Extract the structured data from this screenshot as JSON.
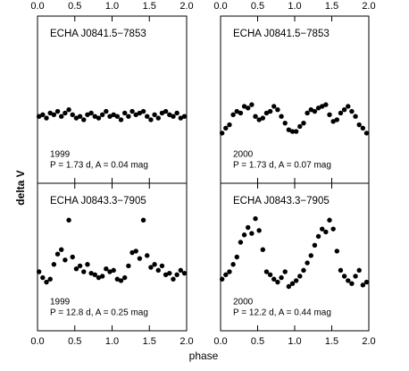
{
  "ylabel": "delta V",
  "xlabel": "phase",
  "chart_data": [
    {
      "type": "scatter",
      "name": "ECHA J0841.5−7853",
      "epoch": "1999",
      "params": "P = 1.73 d, A = 0.04 mag",
      "color": "#000000",
      "xlim": [
        0,
        2
      ],
      "ylim": [
        0,
        1
      ],
      "xticks": [
        {
          "value": 0,
          "label": "0.0"
        },
        0.5,
        {
          "value": 1,
          "label": "1.0"
        },
        1.5,
        {
          "value": 2,
          "label": "2.0"
        }
      ],
      "x": [
        0.02,
        0.07,
        0.12,
        0.17,
        0.22,
        0.27,
        0.32,
        0.37,
        0.42,
        0.47,
        0.52,
        0.57,
        0.62,
        0.67,
        0.72,
        0.77,
        0.82,
        0.87,
        0.92,
        0.97,
        1.02,
        1.07,
        1.12,
        1.17,
        1.22,
        1.27,
        1.32,
        1.37,
        1.42,
        1.47,
        1.52,
        1.57,
        1.62,
        1.67,
        1.72,
        1.77,
        1.82,
        1.87,
        1.92,
        1.97
      ],
      "values": [
        0.4,
        0.41,
        0.39,
        0.42,
        0.41,
        0.43,
        0.4,
        0.42,
        0.44,
        0.41,
        0.39,
        0.4,
        0.38,
        0.41,
        0.42,
        0.4,
        0.39,
        0.41,
        0.43,
        0.4,
        0.41,
        0.4,
        0.38,
        0.42,
        0.4,
        0.43,
        0.41,
        0.42,
        0.43,
        0.4,
        0.38,
        0.41,
        0.39,
        0.42,
        0.43,
        0.41,
        0.4,
        0.42,
        0.39,
        0.4
      ]
    },
    {
      "type": "scatter",
      "name": "ECHA J0841.5−7853",
      "epoch": "2000",
      "params": "P = 1.73 d, A = 0.07 mag",
      "color": "#000000",
      "xlim": [
        0,
        2
      ],
      "ylim": [
        0,
        1
      ],
      "xticks": [
        {
          "value": 0,
          "label": "0.0"
        },
        0.5,
        {
          "value": 1,
          "label": "1.0"
        },
        1.5,
        {
          "value": 2,
          "label": "2.0"
        }
      ],
      "x": [
        0.02,
        0.07,
        0.12,
        0.17,
        0.22,
        0.27,
        0.32,
        0.37,
        0.42,
        0.47,
        0.52,
        0.57,
        0.62,
        0.67,
        0.72,
        0.77,
        0.82,
        0.87,
        0.92,
        0.97,
        1.02,
        1.07,
        1.12,
        1.17,
        1.22,
        1.27,
        1.32,
        1.37,
        1.42,
        1.47,
        1.52,
        1.57,
        1.62,
        1.67,
        1.72,
        1.77,
        1.82,
        1.87,
        1.92,
        1.97
      ],
      "values": [
        0.3,
        0.33,
        0.35,
        0.41,
        0.43,
        0.42,
        0.46,
        0.45,
        0.47,
        0.4,
        0.38,
        0.39,
        0.42,
        0.43,
        0.46,
        0.44,
        0.4,
        0.36,
        0.32,
        0.31,
        0.31,
        0.34,
        0.36,
        0.42,
        0.44,
        0.43,
        0.45,
        0.46,
        0.47,
        0.41,
        0.37,
        0.38,
        0.42,
        0.44,
        0.46,
        0.43,
        0.4,
        0.35,
        0.33,
        0.3
      ]
    },
    {
      "type": "scatter",
      "name": "ECHA J0843.3−7905",
      "epoch": "1999",
      "params": "P = 12.8 d, A = 0.25 mag",
      "color": "#000000",
      "xlim": [
        0,
        2
      ],
      "ylim": [
        0,
        1
      ],
      "xticks": [
        {
          "value": 0,
          "label": "0.0"
        },
        0.5,
        {
          "value": 1,
          "label": "1.0"
        },
        1.5,
        {
          "value": 2,
          "label": "2.0"
        }
      ],
      "x": [
        0.02,
        0.07,
        0.12,
        0.17,
        0.22,
        0.27,
        0.32,
        0.37,
        0.42,
        0.47,
        0.52,
        0.57,
        0.62,
        0.67,
        0.72,
        0.77,
        0.82,
        0.87,
        0.92,
        0.97,
        1.02,
        1.07,
        1.12,
        1.17,
        1.22,
        1.27,
        1.32,
        1.37,
        1.42,
        1.47,
        1.52,
        1.57,
        1.62,
        1.67,
        1.72,
        1.77,
        1.82,
        1.87,
        1.92,
        1.97
      ],
      "values": [
        0.4,
        0.36,
        0.33,
        0.35,
        0.45,
        0.52,
        0.55,
        0.48,
        0.75,
        0.5,
        0.42,
        0.44,
        0.4,
        0.45,
        0.39,
        0.38,
        0.36,
        0.37,
        0.42,
        0.4,
        0.41,
        0.35,
        0.34,
        0.36,
        0.44,
        0.53,
        0.54,
        0.49,
        0.75,
        0.51,
        0.43,
        0.45,
        0.41,
        0.44,
        0.38,
        0.39,
        0.35,
        0.38,
        0.41,
        0.39
      ]
    },
    {
      "type": "scatter",
      "name": "ECHA J0843.3−7905",
      "epoch": "2000",
      "params": "P = 12.2 d, A = 0.44 mag",
      "color": "#000000",
      "xlim": [
        0,
        2
      ],
      "ylim": [
        0,
        1
      ],
      "xticks": [
        {
          "value": 0,
          "label": "0.0"
        },
        0.5,
        {
          "value": 1,
          "label": "1.0"
        },
        1.5,
        {
          "value": 2,
          "label": "2.0"
        }
      ],
      "x": [
        0.02,
        0.07,
        0.12,
        0.17,
        0.22,
        0.27,
        0.32,
        0.37,
        0.42,
        0.47,
        0.52,
        0.57,
        0.62,
        0.67,
        0.72,
        0.77,
        0.82,
        0.87,
        0.92,
        0.97,
        1.02,
        1.07,
        1.12,
        1.17,
        1.22,
        1.27,
        1.32,
        1.37,
        1.42,
        1.47,
        1.52,
        1.57,
        1.62,
        1.67,
        1.72,
        1.77,
        1.82,
        1.87,
        1.92,
        1.97
      ],
      "values": [
        0.35,
        0.38,
        0.4,
        0.45,
        0.5,
        0.6,
        0.65,
        0.7,
        0.66,
        0.76,
        0.68,
        0.55,
        0.4,
        0.38,
        0.35,
        0.33,
        0.36,
        0.4,
        0.3,
        0.32,
        0.34,
        0.37,
        0.41,
        0.46,
        0.51,
        0.58,
        0.64,
        0.69,
        0.67,
        0.75,
        0.69,
        0.54,
        0.41,
        0.37,
        0.34,
        0.32,
        0.37,
        0.41,
        0.31,
        0.33
      ]
    }
  ]
}
